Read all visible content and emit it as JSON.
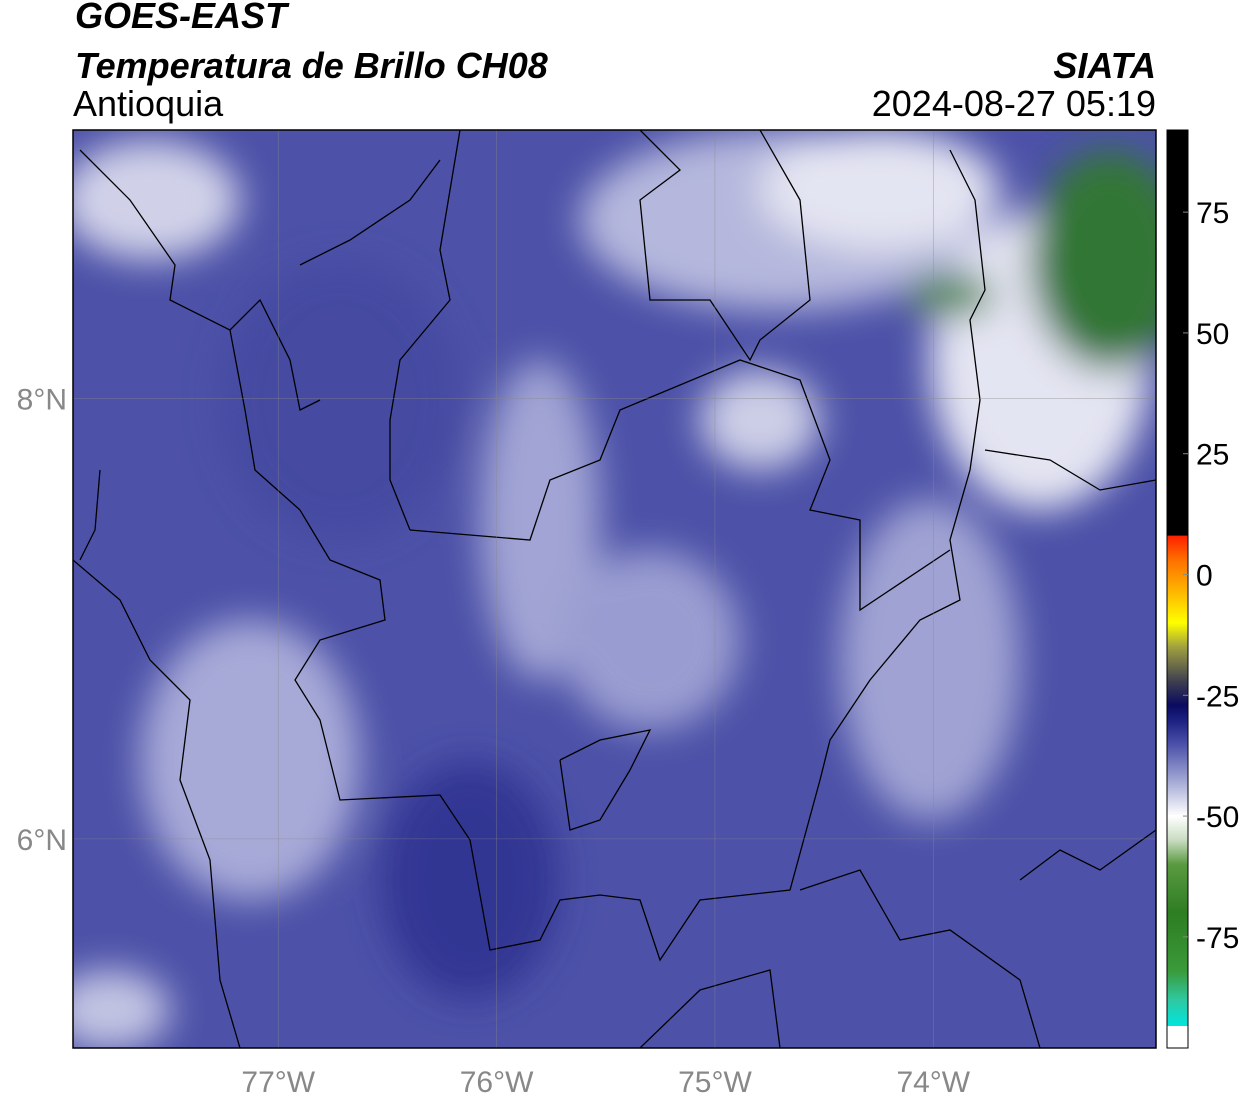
{
  "header": {
    "title": "GOES-EAST",
    "subtitle": "Temperatura de Brillo CH08",
    "region": "Antioquia",
    "agency": "SIATA",
    "datetime": "2024-08-27 05:19"
  },
  "map": {
    "xlim": [
      -77.94,
      -72.98
    ],
    "ylim": [
      5.05,
      9.22
    ],
    "xticks": [
      {
        "value": -77,
        "label": "77°W"
      },
      {
        "value": -76,
        "label": "76°W"
      },
      {
        "value": -75,
        "label": "75°W"
      },
      {
        "value": -74,
        "label": "74°W"
      }
    ],
    "yticks": [
      {
        "value": 8,
        "label": "8°N"
      },
      {
        "value": 6,
        "label": "6°N"
      }
    ],
    "grid": true
  },
  "colorbar": {
    "lim": [
      -98,
      92
    ],
    "ticks": [
      75,
      50,
      25,
      0,
      -25,
      -50,
      -75
    ],
    "stops": [
      {
        "value": -98,
        "color": "#ffffff"
      },
      {
        "value": -93.5,
        "color": "#ffffff"
      },
      {
        "value": -93.4,
        "color": "#00e5dd"
      },
      {
        "value": -88,
        "color": "#2fc8a0"
      },
      {
        "value": -82,
        "color": "#3a9a3a"
      },
      {
        "value": -70,
        "color": "#2e7d22"
      },
      {
        "value": -60,
        "color": "#5a9a40"
      },
      {
        "value": -55,
        "color": "#c8dcc0"
      },
      {
        "value": -50,
        "color": "#ffffff"
      },
      {
        "value": -42,
        "color": "#9aa0d0"
      },
      {
        "value": -35,
        "color": "#4a4fa8"
      },
      {
        "value": -30,
        "color": "#1a1f80"
      },
      {
        "value": -27,
        "color": "#0a0a60"
      },
      {
        "value": -22,
        "color": "#404050"
      },
      {
        "value": -15,
        "color": "#a0a040"
      },
      {
        "value": -10,
        "color": "#ffff00"
      },
      {
        "value": -3,
        "color": "#ffb000"
      },
      {
        "value": 3,
        "color": "#ff7000"
      },
      {
        "value": 8,
        "color": "#ff2000"
      },
      {
        "value": 8.1,
        "color": "#000000"
      },
      {
        "value": 92,
        "color": "#000000"
      }
    ]
  }
}
